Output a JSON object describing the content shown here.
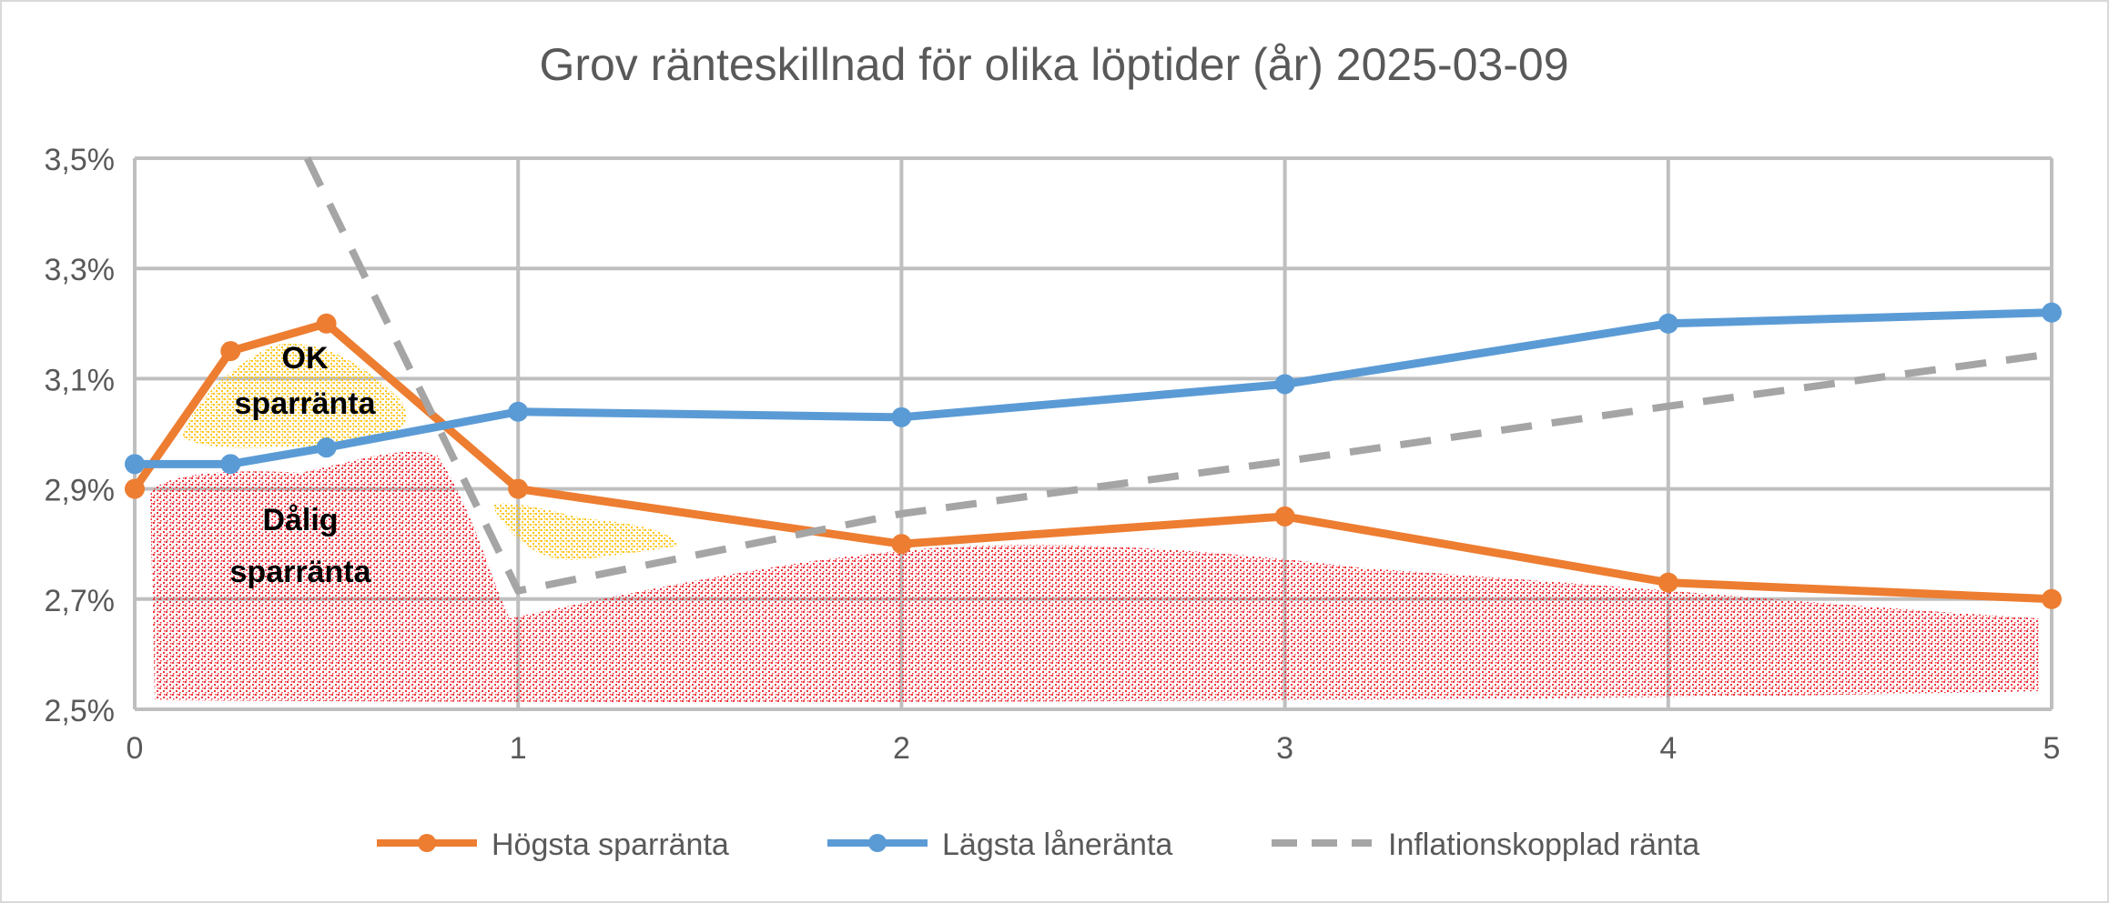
{
  "chart_data": {
    "type": "line",
    "title": "Grov ränteskillnad för olika löptider (år) 2025-03-09",
    "xlabel": "",
    "ylabel": "",
    "xlim": [
      0,
      5
    ],
    "ylim": [
      2.5,
      3.5
    ],
    "x_ticks": [
      "0",
      "1",
      "2",
      "3",
      "4",
      "5"
    ],
    "y_ticks": [
      "2,5%",
      "2,7%",
      "2,9%",
      "3,1%",
      "3,3%",
      "3,5%"
    ],
    "grid": true,
    "legend_position": "bottom",
    "series": [
      {
        "name": "Högsta sparränta",
        "color": "#ED7D31",
        "style": "solid-markers",
        "x": [
          0,
          0.25,
          0.5,
          1,
          2,
          3,
          4,
          5
        ],
        "y": [
          2.9,
          3.15,
          3.2,
          2.9,
          2.8,
          2.85,
          2.73,
          2.7
        ]
      },
      {
        "name": "Lägsta låneränta",
        "color": "#5B9BD5",
        "style": "solid-markers",
        "x": [
          0,
          0.25,
          0.5,
          1,
          2,
          3,
          4,
          5
        ],
        "y": [
          2.945,
          2.945,
          2.975,
          3.04,
          3.03,
          3.09,
          3.2,
          3.22
        ]
      },
      {
        "name": "Inflationskopplad ränta",
        "color": "#A5A5A5",
        "style": "dashed",
        "x": [
          0.45,
          1,
          2,
          3,
          4,
          5
        ],
        "y": [
          3.5,
          2.715,
          2.855,
          2.95,
          3.05,
          3.145
        ]
      }
    ],
    "annotations": [
      {
        "text": "OK sparränta",
        "color": "#FFC000"
      },
      {
        "text": "Dålig sparränta",
        "color": "#EE1C25"
      }
    ]
  }
}
